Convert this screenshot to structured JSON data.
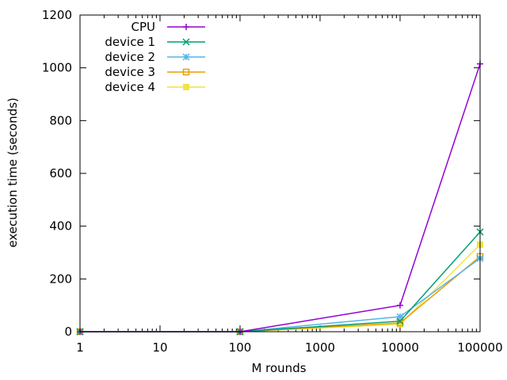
{
  "chart_data": {
    "type": "line",
    "xscale": "log",
    "xlim": [
      1,
      100000
    ],
    "ylim": [
      0,
      1200
    ],
    "xlabel": "M rounds",
    "ylabel": "execution time (seconds)",
    "x_ticks": [
      1,
      10,
      100,
      1000,
      10000,
      100000
    ],
    "x_tick_labels": [
      "1",
      "10",
      "100",
      "1000",
      "10000",
      "100000"
    ],
    "y_ticks": [
      0,
      200,
      400,
      600,
      800,
      1000,
      1200
    ],
    "y_tick_labels": [
      "0",
      "200",
      "400",
      "600",
      "800",
      "1000",
      "1200"
    ],
    "grid": false,
    "legend_position": "top-left",
    "series": [
      {
        "name": "CPU",
        "color": "#9400d3",
        "marker": "plus",
        "x": [
          1,
          100,
          10000,
          100000
        ],
        "y": [
          0,
          0,
          100,
          1015
        ]
      },
      {
        "name": "device 1",
        "color": "#009e73",
        "marker": "cross",
        "x": [
          1,
          100,
          10000,
          100000
        ],
        "y": [
          0,
          0,
          40,
          378
        ]
      },
      {
        "name": "device 2",
        "color": "#56b4e9",
        "marker": "star",
        "x": [
          1,
          100,
          10000,
          100000
        ],
        "y": [
          0,
          0,
          57,
          278
        ]
      },
      {
        "name": "device 3",
        "color": "#e69f00",
        "marker": "open-square",
        "x": [
          1,
          100,
          10000,
          100000
        ],
        "y": [
          0,
          0,
          33,
          285
        ]
      },
      {
        "name": "device 4",
        "color": "#f0e442",
        "marker": "filled-square",
        "x": [
          1,
          100,
          10000,
          100000
        ],
        "y": [
          0,
          0,
          28,
          330
        ]
      }
    ]
  }
}
